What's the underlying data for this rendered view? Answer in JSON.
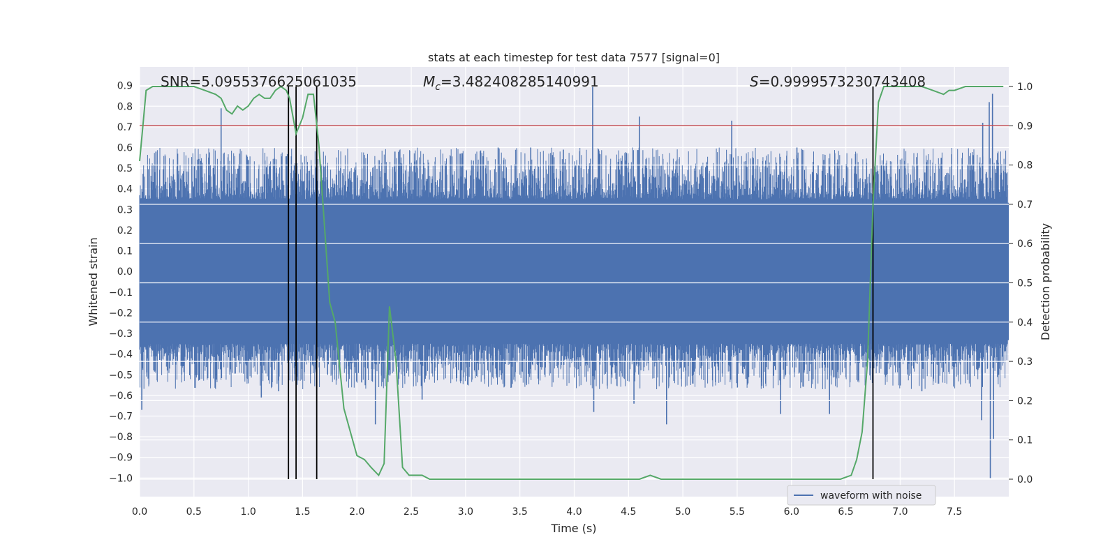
{
  "chart_data": {
    "type": "line",
    "title": "stats at each timestep for test data 7577 [signal=0]",
    "xlabel": "Time (s)",
    "ylabel_left": "Whitened strain",
    "ylabel_right": "Detection probability",
    "xlim": [
      0.0,
      8.0
    ],
    "ylim_left": [
      -1.09,
      0.99
    ],
    "ylim_right": [
      0.0,
      1.0
    ],
    "x_ticks": [
      "0.0",
      "0.5",
      "1.0",
      "1.5",
      "2.0",
      "2.5",
      "3.0",
      "3.5",
      "4.0",
      "4.5",
      "5.0",
      "5.5",
      "6.0",
      "6.5",
      "7.0",
      "7.5"
    ],
    "y_left_ticks": [
      "0.9",
      "0.8",
      "0.7",
      "0.6",
      "0.5",
      "0.4",
      "0.3",
      "0.2",
      "0.1",
      "0.0",
      "-0.1",
      "-0.2",
      "-0.3",
      "-0.4",
      "-0.5",
      "-0.6",
      "-0.7",
      "-0.8",
      "-0.9",
      "-1.0"
    ],
    "y_right_ticks": [
      "1.0",
      "0.9",
      "0.8",
      "0.7",
      "0.6",
      "0.5",
      "0.4",
      "0.3",
      "0.2",
      "0.1",
      "0.0"
    ],
    "grid": true,
    "annotations": {
      "snr": "SNR=5.0955376625061035",
      "mc_symbol": "M",
      "mc_sub": "c",
      "mc_value": "=3.482408285140991",
      "s_symbol": "S",
      "s_value": "=0.9999573230743408"
    },
    "threshold": {
      "value": 0.9,
      "axis": "right",
      "color": "#c44e52"
    },
    "vertical_lines": [
      1.37,
      1.44,
      1.63,
      6.75
    ],
    "series": [
      {
        "name": "waveform with noise",
        "axis": "left",
        "kind": "noise",
        "color": "#4c72b0",
        "envelope_core": 0.35,
        "spikes": [
          {
            "t": 0.02,
            "v": -0.67
          },
          {
            "t": 0.15,
            "v": 0.58
          },
          {
            "t": 0.35,
            "v": 0.57
          },
          {
            "t": 0.75,
            "v": 0.79
          },
          {
            "t": 1.12,
            "v": -0.61
          },
          {
            "t": 1.28,
            "v": -0.58
          },
          {
            "t": 1.85,
            "v": 0.5
          },
          {
            "t": 2.17,
            "v": -0.74
          },
          {
            "t": 2.35,
            "v": 0.58
          },
          {
            "t": 2.6,
            "v": -0.62
          },
          {
            "t": 2.95,
            "v": 0.57
          },
          {
            "t": 3.3,
            "v": 0.6
          },
          {
            "t": 3.6,
            "v": 0.6
          },
          {
            "t": 3.9,
            "v": 0.59
          },
          {
            "t": 4.17,
            "v": 0.9
          },
          {
            "t": 4.18,
            "v": -0.68
          },
          {
            "t": 4.6,
            "v": 0.75
          },
          {
            "t": 4.55,
            "v": -0.64
          },
          {
            "t": 4.85,
            "v": -0.74
          },
          {
            "t": 5.45,
            "v": 0.73
          },
          {
            "t": 5.9,
            "v": -0.69
          },
          {
            "t": 6.05,
            "v": 0.6
          },
          {
            "t": 6.35,
            "v": -0.69
          },
          {
            "t": 7.2,
            "v": -0.58
          },
          {
            "t": 7.75,
            "v": -0.72
          },
          {
            "t": 7.82,
            "v": 0.82
          },
          {
            "t": 7.85,
            "v": 0.86
          },
          {
            "t": 7.83,
            "v": -1.0
          },
          {
            "t": 7.86,
            "v": -0.81
          },
          {
            "t": 7.76,
            "v": 0.72
          }
        ]
      },
      {
        "name": "detection probability",
        "axis": "right",
        "kind": "line",
        "color": "#55a868",
        "x": [
          0.0,
          0.03,
          0.06,
          0.12,
          0.2,
          0.3,
          0.4,
          0.5,
          0.6,
          0.7,
          0.75,
          0.8,
          0.85,
          0.9,
          0.95,
          1.0,
          1.05,
          1.1,
          1.15,
          1.2,
          1.25,
          1.3,
          1.35,
          1.38,
          1.44,
          1.5,
          1.55,
          1.6,
          1.65,
          1.7,
          1.75,
          1.8,
          1.88,
          1.95,
          2.0,
          2.07,
          2.13,
          2.2,
          2.25,
          2.3,
          2.36,
          2.42,
          2.48,
          2.55,
          2.6,
          2.67,
          2.75,
          2.85,
          3.0,
          3.2,
          3.4,
          3.6,
          3.8,
          4.0,
          4.2,
          4.4,
          4.6,
          4.7,
          4.8,
          5.0,
          5.2,
          5.4,
          5.6,
          5.8,
          6.0,
          6.2,
          6.35,
          6.45,
          6.55,
          6.6,
          6.65,
          6.7,
          6.75,
          6.8,
          6.85,
          6.9,
          7.0,
          7.2,
          7.3,
          7.4,
          7.45,
          7.5,
          7.6,
          7.7,
          7.8,
          7.95
        ],
        "y": [
          0.81,
          0.9,
          0.99,
          1.0,
          1.0,
          1.0,
          1.0,
          1.0,
          0.99,
          0.98,
          0.97,
          0.94,
          0.93,
          0.95,
          0.94,
          0.95,
          0.97,
          0.98,
          0.97,
          0.97,
          0.99,
          1.0,
          0.99,
          0.97,
          0.88,
          0.92,
          0.98,
          0.98,
          0.85,
          0.65,
          0.45,
          0.4,
          0.18,
          0.11,
          0.06,
          0.05,
          0.03,
          0.01,
          0.04,
          0.44,
          0.3,
          0.03,
          0.01,
          0.01,
          0.01,
          0.0,
          0.0,
          0.0,
          0.0,
          0.0,
          0.0,
          0.0,
          0.0,
          0.0,
          0.0,
          0.0,
          0.0,
          0.01,
          0.0,
          0.0,
          0.0,
          0.0,
          0.0,
          0.0,
          0.0,
          0.0,
          0.0,
          0.0,
          0.01,
          0.05,
          0.12,
          0.3,
          0.7,
          0.96,
          1.0,
          1.0,
          1.0,
          1.0,
          0.99,
          0.98,
          0.99,
          0.99,
          1.0,
          1.0,
          1.0,
          1.0
        ]
      }
    ],
    "legend": {
      "placement": "bottom-right",
      "entries": [
        "waveform with noise"
      ]
    }
  }
}
